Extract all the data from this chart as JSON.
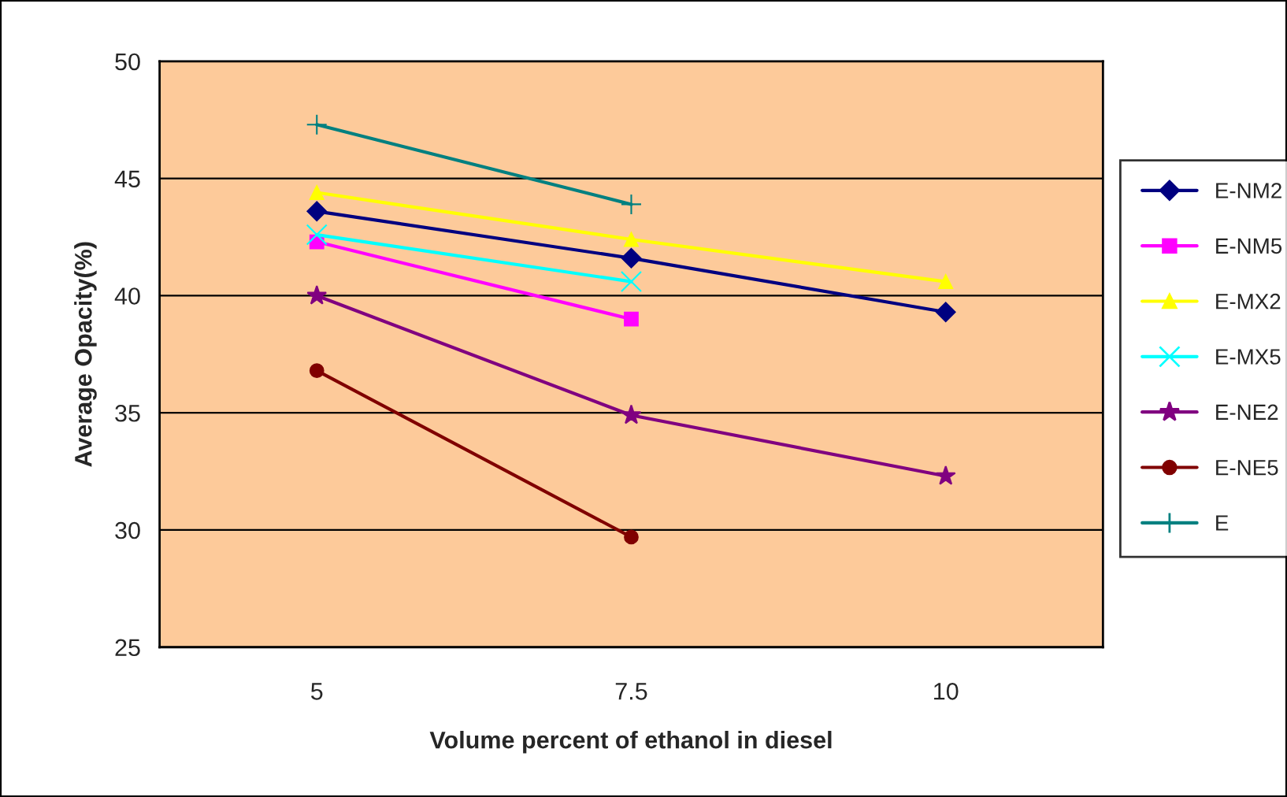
{
  "chart_data": {
    "type": "line",
    "xlabel": "Volume percent of ethanol in diesel",
    "ylabel": "Average Opacity(%)",
    "categories": [
      "5",
      "7.5",
      "10"
    ],
    "series": [
      {
        "name": "E-NM2",
        "color": "#000080",
        "marker": "diamond",
        "values": [
          43.6,
          41.6,
          39.3
        ]
      },
      {
        "name": "E-NM5",
        "color": "#ff00ff",
        "marker": "square",
        "values": [
          42.3,
          39.0,
          null
        ]
      },
      {
        "name": "E-MX2",
        "color": "#ffff00",
        "marker": "triangle",
        "values": [
          44.4,
          42.4,
          40.6
        ]
      },
      {
        "name": "E-MX5",
        "color": "#00ffff",
        "marker": "x",
        "values": [
          42.6,
          40.6,
          null
        ]
      },
      {
        "name": "E-NE2",
        "color": "#800080",
        "marker": "star",
        "values": [
          40.0,
          34.9,
          32.3
        ]
      },
      {
        "name": "E-NE5",
        "color": "#800000",
        "marker": "circle",
        "values": [
          36.8,
          29.7,
          null
        ]
      },
      {
        "name": "E",
        "color": "#008080",
        "marker": "cross",
        "values": [
          47.3,
          43.9,
          null
        ]
      }
    ],
    "ylim": [
      25,
      50
    ],
    "yticks": [
      25,
      30,
      35,
      40,
      45,
      50
    ],
    "grid": "y",
    "legend": "right"
  }
}
